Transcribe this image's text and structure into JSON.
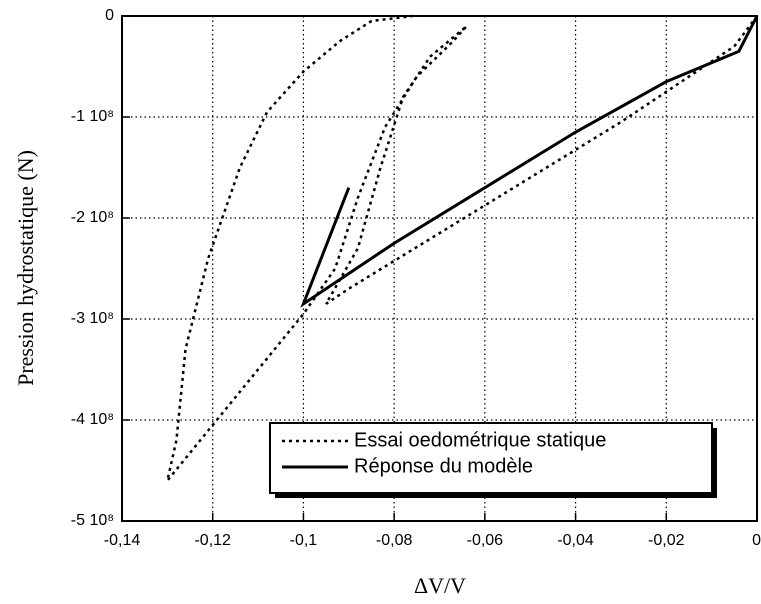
{
  "chart_data": {
    "type": "line",
    "xlabel": "ΔV/V",
    "ylabel": "Pression hydrostatique (N)",
    "xlim": [
      -0.14,
      0
    ],
    "ylim": [
      -500000000,
      0
    ],
    "xticks": [
      {
        "value": -0.14,
        "label": "-0,14"
      },
      {
        "value": -0.12,
        "label": "-0,12"
      },
      {
        "value": -0.1,
        "label": "-0,1"
      },
      {
        "value": -0.08,
        "label": "-0,08"
      },
      {
        "value": -0.06,
        "label": "-0,06"
      },
      {
        "value": -0.04,
        "label": "-0,04"
      },
      {
        "value": -0.02,
        "label": "-0,02"
      },
      0
    ],
    "yticks": [
      0,
      {
        "value": -100000000,
        "label": "-1 10⁸"
      },
      {
        "value": -200000000,
        "label": "-2 10⁸"
      },
      {
        "value": -300000000,
        "label": "-3 10⁸"
      },
      {
        "value": -400000000,
        "label": "-4 10⁸"
      },
      {
        "value": -500000000,
        "label": "-5 10⁸"
      }
    ],
    "grid": true,
    "legend": "lower right",
    "series": [
      {
        "name": "Essai oedométrique statique",
        "color": "#000000",
        "dash": "dotted",
        "x": [
          0,
          -0.005,
          -0.015,
          -0.03,
          -0.05,
          -0.07,
          -0.09,
          -0.095,
          -0.088,
          -0.083,
          -0.078,
          -0.072,
          -0.064,
          -0.067,
          -0.075,
          -0.082,
          -0.088,
          -0.093,
          -0.1,
          -0.11,
          -0.12,
          -0.13,
          -0.128,
          -0.126,
          -0.121,
          -0.114,
          -0.108,
          -0.1,
          -0.092,
          -0.085,
          -0.076
        ],
        "values": [
          0,
          -30000000,
          -60000000,
          -105000000,
          -160000000,
          -215000000,
          -270000000,
          -285000000,
          -230000000,
          -150000000,
          -80000000,
          -40000000,
          -10000000,
          -25000000,
          -60000000,
          -110000000,
          -180000000,
          -250000000,
          -295000000,
          -350000000,
          -405000000,
          -460000000,
          -420000000,
          -330000000,
          -240000000,
          -150000000,
          -95000000,
          -55000000,
          -25000000,
          -5000000,
          0
        ]
      },
      {
        "name": "Réponse du modèle",
        "color": "#000000",
        "dash": "solid",
        "x": [
          0,
          -0.004,
          -0.02,
          -0.04,
          -0.06,
          -0.08,
          -0.1,
          -0.09
        ],
        "values": [
          0,
          -35000000,
          -65000000,
          -115000000,
          -170000000,
          -225000000,
          -285000000,
          -170000000
        ]
      }
    ]
  }
}
